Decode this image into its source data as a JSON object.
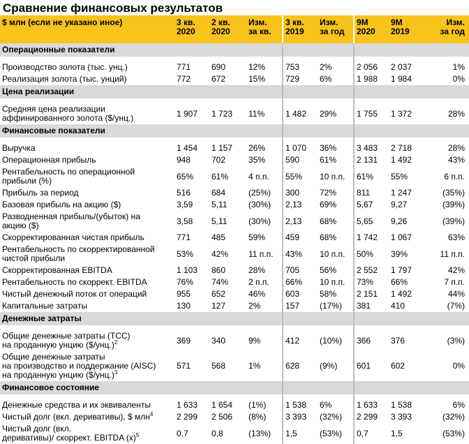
{
  "title": "Сравнение финансовых результатов",
  "table": {
    "columns": [
      "$ млн (если не указано иное)",
      "3 кв.\n2020",
      "2 кв.\n2020",
      "Изм.\nза кв.",
      "3 кв.\n2019",
      "Изм.\nза год",
      "9M\n2020",
      "9M\n2019",
      "Изм.\nза год"
    ],
    "sections": [
      {
        "title": "Операционные показатели",
        "rows": [
          {
            "label": "Производство золота (тыс. унц.)",
            "cells": [
              "771",
              "690",
              "12%",
              "753",
              "2%",
              "2 056",
              "2 037",
              "1%"
            ]
          },
          {
            "label": "Реализация золота (тыс. унций)",
            "cells": [
              "772",
              "672",
              "15%",
              "729",
              "6%",
              "1 988",
              "1 984",
              "0%"
            ]
          }
        ]
      },
      {
        "title": "Цена реализации",
        "rows": [
          {
            "label": "Средняя цена реализации\nаффинированного золота ($/унц.)",
            "cells": [
              "1 907",
              "1 723",
              "11%",
              "1 482",
              "29%",
              "1 755",
              "1 372",
              "28%"
            ]
          }
        ]
      },
      {
        "title": "Финансовые показатели",
        "rows": [
          {
            "label": "Выручка",
            "cells": [
              "1 454",
              "1 157",
              "26%",
              "1 070",
              "36%",
              "3 483",
              "2 718",
              "28%"
            ]
          },
          {
            "label": "Операционная прибыль",
            "cells": [
              "948",
              "702",
              "35%",
              "590",
              "61%",
              "2 131",
              "1 492",
              "43%"
            ]
          },
          {
            "label": "Рентабельность по операционной\nприбыли (%)",
            "cells": [
              "65%",
              "61%",
              "4 п.п.",
              "55%",
              "10 п.п.",
              "61%",
              "55%",
              "6 п.п."
            ]
          },
          {
            "label": "Прибыль за период",
            "cells": [
              "516",
              "684",
              "(25%)",
              "300",
              "72%",
              "811",
              "1 247",
              "(35%)"
            ]
          },
          {
            "label": "Базовая прибыль на акцию ($)",
            "cells": [
              "3,59",
              "5,11",
              "(30%)",
              "2,13",
              "69%",
              "5,67",
              "9,27",
              "(39%)"
            ]
          },
          {
            "label": "Разводненная прибыль/(убыток) на\nакцию ($)",
            "cells": [
              "3,58",
              "5,11",
              "(30%)",
              "2,13",
              "68%",
              "5,65",
              "9,26",
              "(39%)"
            ]
          },
          {
            "label": "Скорректированная чистая прибыль",
            "cells": [
              "771",
              "485",
              "59%",
              "459",
              "68%",
              "1 742",
              "1 067",
              "63%"
            ]
          },
          {
            "label": "Рентабельность по скорректированной\nчистой прибыли",
            "cells": [
              "53%",
              "42%",
              "11 п.п.",
              "43%",
              "10 п.п.",
              "50%",
              "39%",
              "11 п.п."
            ]
          },
          {
            "label": "Скорректированная EBITDA",
            "cells": [
              "1 103",
              "860",
              "28%",
              "705",
              "56%",
              "2 552",
              "1 797",
              "42%"
            ]
          },
          {
            "label": "Рентабельность по скоррект. EBITDA",
            "cells": [
              "76%",
              "74%",
              "2 п.п.",
              "66%",
              "10 п.п.",
              "73%",
              "66%",
              "7 п.п."
            ]
          },
          {
            "label": "Чистый денежный поток от операций",
            "cells": [
              "955",
              "652",
              "46%",
              "603",
              "58%",
              "2 151",
              "1 492",
              "44%"
            ]
          },
          {
            "label": "Капитальные затраты",
            "cells": [
              "130",
              "127",
              "2%",
              "157",
              "(17%)",
              "381",
              "410",
              "(7%)"
            ]
          }
        ]
      },
      {
        "title": "Денежные затраты",
        "rows": [
          {
            "label": "Общие денежные затраты (TCC)\nна проданную унцию ($/унц.)",
            "sup": "2",
            "cells": [
              "369",
              "340",
              "9%",
              "412",
              "(10%)",
              "366",
              "376",
              "(3%)"
            ]
          },
          {
            "label": "Общие денежные затраты\nна производство и поддержание (AISC)\nна проданную унцию ($/унц.)",
            "sup": "3",
            "cells": [
              "571",
              "568",
              "1%",
              "628",
              "(9%)",
              "601",
              "602",
              "0%"
            ]
          }
        ]
      },
      {
        "title": "Финансовое состояние",
        "rows": [
          {
            "label": "Денежные средства и их эквиваленты",
            "cells": [
              "1 633",
              "1 654",
              "(1%)",
              "1 538",
              "6%",
              "1 633",
              "1 538",
              "6%"
            ]
          },
          {
            "label": "Чистый долг (вкл. деривативы), $ млн",
            "sup": "4",
            "cells": [
              "2 299",
              "2 506",
              "(8%)",
              "3 393",
              "(32%)",
              "2 299",
              "3 393",
              "(32%)"
            ]
          },
          {
            "label": "Чистый долг (вкл.\nдеривативы)/ скоррект. EBITDA (x)",
            "sup": "5",
            "cells": [
              "0,7",
              "0,8",
              "(13%)",
              "1,5",
              "(53%)",
              "0,7",
              "1,5",
              "(53%)"
            ]
          }
        ]
      }
    ]
  }
}
